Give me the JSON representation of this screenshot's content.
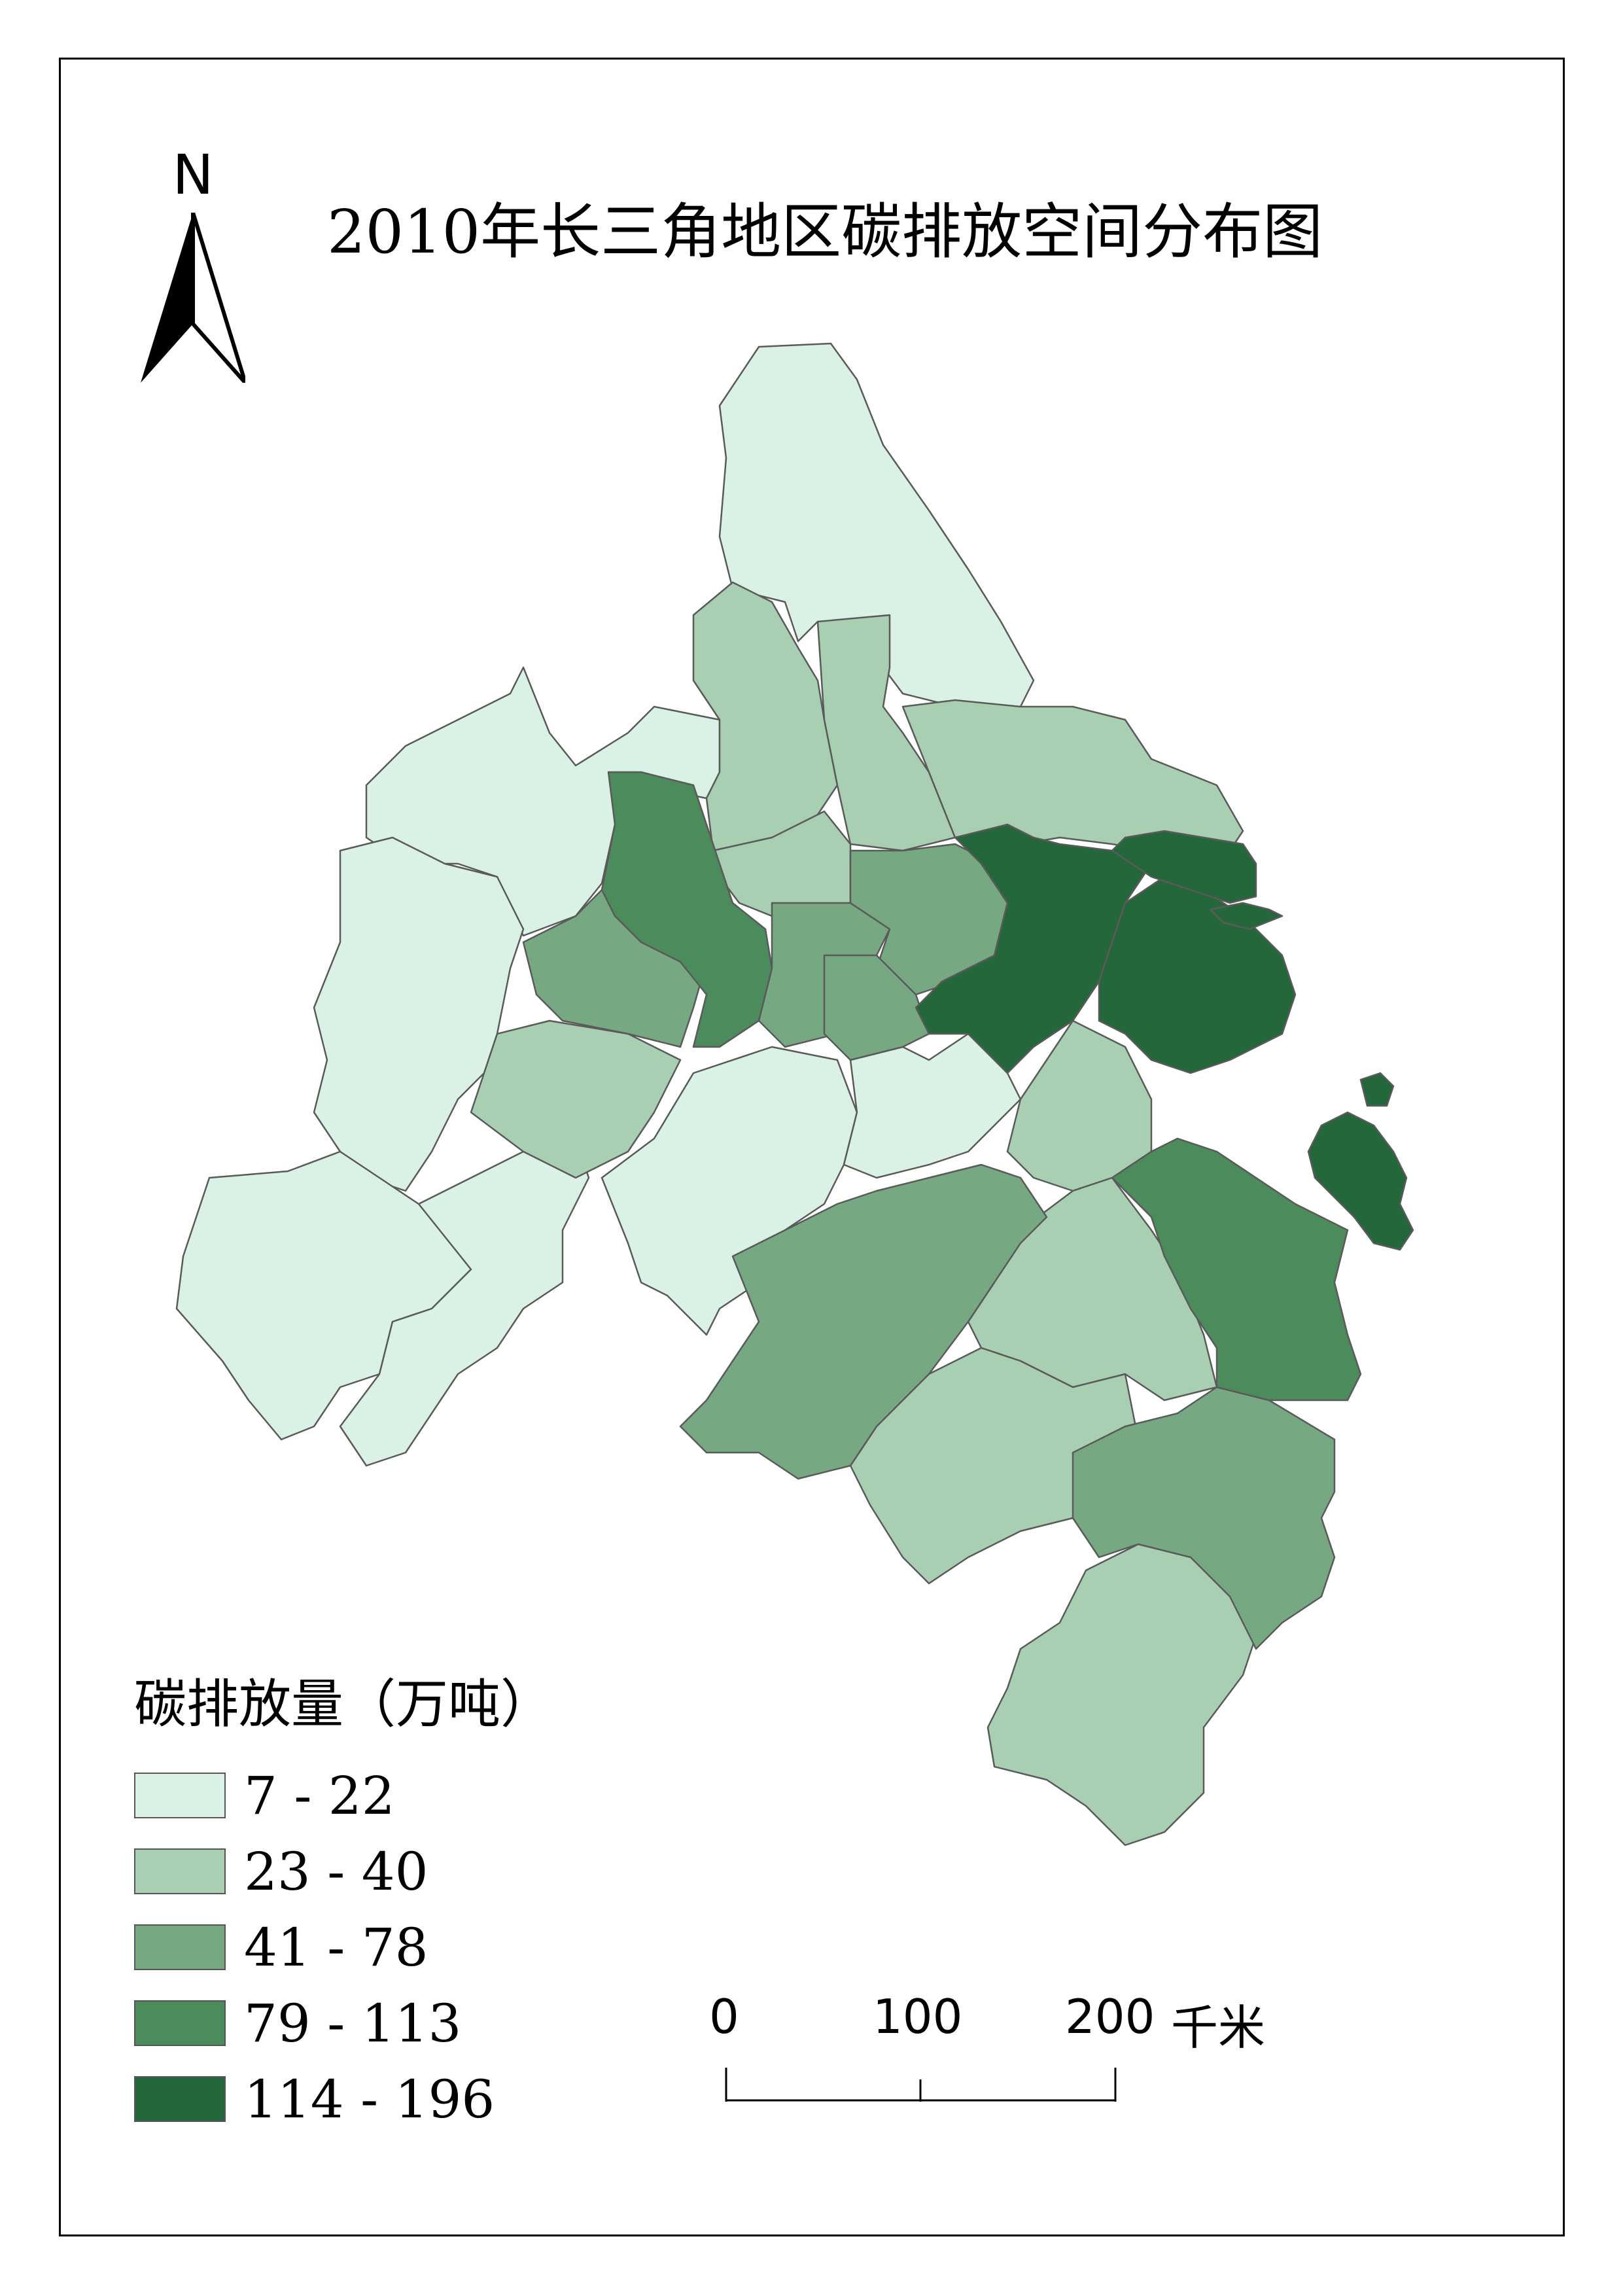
{
  "title": "2010年长三角地区碳排放空间分布图",
  "north_arrow": {
    "label": "N"
  },
  "legend": {
    "title": "碳排放量（万吨）",
    "classes": [
      {
        "label": "7  -  22",
        "color": "#daf2e6"
      },
      {
        "label": "23  -  40",
        "color": "#a8cfb2"
      },
      {
        "label": "41  -  78",
        "color": "#76a882"
      },
      {
        "label": "79  -  113",
        "color": "#4b8b5c"
      },
      {
        "label": "114  -  196",
        "color": "#23673a"
      }
    ]
  },
  "scale_bar": {
    "ticks": [
      "0",
      "100",
      "200"
    ],
    "unit": "千米"
  }
}
